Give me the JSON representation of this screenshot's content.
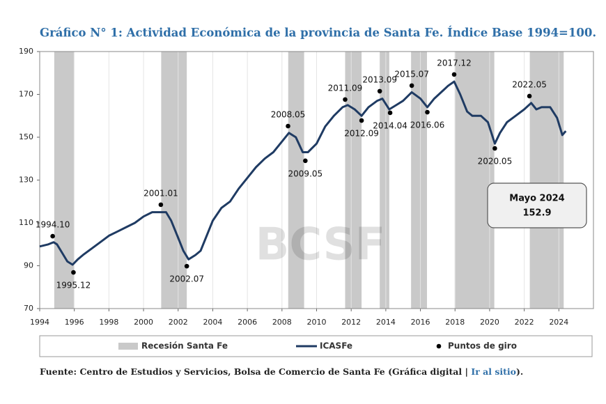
{
  "chart_data": {
    "type": "line",
    "title": "Gráfico N° 1: Actividad Económica de la provincia de Santa Fe. Índice Base 1994=100.",
    "xlim": [
      1994,
      2026
    ],
    "xticks": [
      1994,
      1996,
      1998,
      2000,
      2002,
      2004,
      2006,
      2008,
      2010,
      2012,
      2014,
      2016,
      2018,
      2020,
      2022,
      2024
    ],
    "ylim": [
      70,
      190
    ],
    "yticks": [
      70,
      90,
      110,
      130,
      150,
      170,
      190
    ],
    "grid": true,
    "x": [
      1994.0,
      1994.5,
      1994.8,
      1995.0,
      1995.3,
      1995.6,
      1995.9,
      1996.2,
      1996.5,
      1997.0,
      1997.5,
      1998.0,
      1998.5,
      1999.0,
      1999.5,
      2000.0,
      2000.5,
      2001.0,
      2001.3,
      2001.6,
      2002.0,
      2002.3,
      2002.6,
      2003.0,
      2003.3,
      2003.6,
      2004.0,
      2004.5,
      2005.0,
      2005.5,
      2006.0,
      2006.5,
      2007.0,
      2007.5,
      2008.0,
      2008.4,
      2008.8,
      2009.2,
      2009.5,
      2010.0,
      2010.5,
      2011.0,
      2011.5,
      2011.8,
      2012.2,
      2012.6,
      2013.0,
      2013.5,
      2013.8,
      2014.2,
      2014.6,
      2015.0,
      2015.5,
      2016.0,
      2016.4,
      2016.8,
      2017.2,
      2017.6,
      2017.95,
      2018.3,
      2018.7,
      2019.0,
      2019.5,
      2019.9,
      2020.3,
      2020.6,
      2021.0,
      2021.5,
      2022.0,
      2022.4,
      2022.7,
      2023.0,
      2023.5,
      2023.9,
      2024.2,
      2024.4
    ],
    "series": [
      {
        "name": "ICASFe",
        "color": "#1f3b63",
        "values": [
          99,
          100,
          101,
          100,
          96,
          92,
          90.5,
          93,
          95,
          98,
          101,
          104,
          106,
          108,
          110,
          113,
          115,
          115,
          115,
          111,
          103,
          97,
          93,
          95,
          97,
          103,
          111,
          117,
          120,
          126,
          131,
          136,
          140,
          143,
          148,
          152,
          150,
          143,
          143,
          147,
          155,
          160,
          164,
          165,
          163,
          160,
          164,
          167,
          168,
          163,
          165,
          167,
          171,
          168,
          164,
          168,
          171,
          174,
          176,
          170,
          162,
          160,
          160,
          157,
          147,
          152,
          157,
          160,
          163,
          166,
          163,
          164,
          164,
          159,
          151,
          152.9
        ]
      }
    ],
    "recessions": {
      "name": "Recesión Santa Fe",
      "color": "#c9c9c9",
      "spans": [
        [
          1994.84,
          1995.97
        ],
        [
          2001.02,
          2002.5
        ],
        [
          2008.36,
          2009.28
        ],
        [
          2011.65,
          2012.6
        ],
        [
          2013.65,
          2014.2
        ],
        [
          2015.46,
          2016.38
        ],
        [
          2017.98,
          2020.27
        ],
        [
          2022.32,
          2024.28
        ]
      ]
    },
    "turning_points": {
      "name": "Puntos de giro",
      "color": "#000000",
      "points": [
        {
          "x": 1994.75,
          "y": 103.8,
          "label": "1994.10"
        },
        {
          "x": 1995.95,
          "y": 86.9,
          "label": "1995.12"
        },
        {
          "x": 2001.0,
          "y": 118.5,
          "label": "2001.01"
        },
        {
          "x": 2002.5,
          "y": 89.8,
          "label": "2002.07"
        },
        {
          "x": 2008.35,
          "y": 155.2,
          "label": "2008.05"
        },
        {
          "x": 2009.35,
          "y": 139,
          "label": "2009.05"
        },
        {
          "x": 2011.65,
          "y": 167.6,
          "label": "2011.09"
        },
        {
          "x": 2012.6,
          "y": 157.8,
          "label": "2012.09"
        },
        {
          "x": 2013.65,
          "y": 171.5,
          "label": "2013.09"
        },
        {
          "x": 2014.25,
          "y": 161.4,
          "label": "2014.04"
        },
        {
          "x": 2015.5,
          "y": 174.1,
          "label": "2015.07"
        },
        {
          "x": 2016.4,
          "y": 161.7,
          "label": "2016.06"
        },
        {
          "x": 2017.95,
          "y": 179.3,
          "label": "2017.12"
        },
        {
          "x": 2020.3,
          "y": 144.8,
          "label": "2020.05"
        },
        {
          "x": 2022.3,
          "y": 169.2,
          "label": "2022.05"
        }
      ]
    },
    "annotation": {
      "title": "Mayo 2024",
      "value": 152.9
    },
    "watermark": "BCSF",
    "source": {
      "prefix": "Fuente: Centro de Estudios y Servicios, Bolsa de Comercio de Santa Fe (Gráfica digital | ",
      "link": "Ir al sitio",
      "suffix": ")."
    }
  }
}
